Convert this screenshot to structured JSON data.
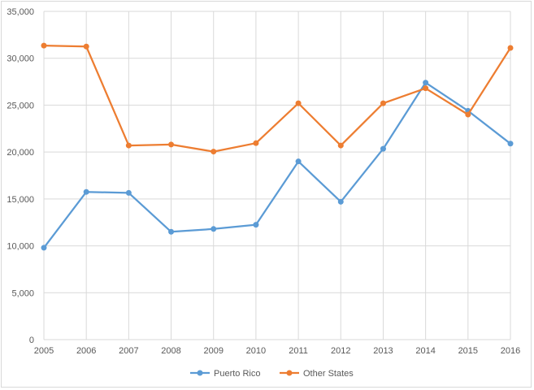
{
  "chart_data": {
    "type": "line",
    "title": "",
    "xlabel": "",
    "ylabel": "",
    "categories": [
      "2005",
      "2006",
      "2007",
      "2008",
      "2009",
      "2010",
      "2011",
      "2012",
      "2013",
      "2014",
      "2015",
      "2016"
    ],
    "ylim": [
      0,
      35000
    ],
    "y_ticks": [
      0,
      5000,
      10000,
      15000,
      20000,
      25000,
      30000,
      35000
    ],
    "y_tick_labels": [
      "0",
      "5,000",
      "10,000",
      "15,000",
      "20,000",
      "25,000",
      "30,000",
      "35,000"
    ],
    "grid": true,
    "legend_position": "bottom",
    "series": [
      {
        "name": "Puerto Rico",
        "color": "#5b9bd5",
        "values": [
          9800,
          15750,
          15650,
          11500,
          11800,
          12250,
          19000,
          14700,
          20350,
          27400,
          24400,
          20900
        ]
      },
      {
        "name": "Other States",
        "color": "#ed7d31",
        "values": [
          31350,
          31250,
          20700,
          20800,
          20050,
          20950,
          25200,
          20700,
          25200,
          26800,
          24000,
          31100
        ]
      }
    ]
  }
}
